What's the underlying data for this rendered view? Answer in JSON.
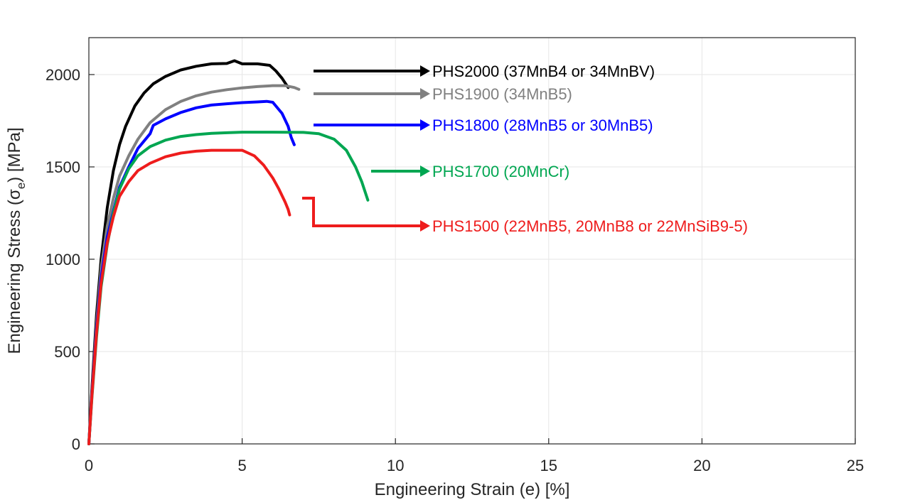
{
  "chart_data": {
    "type": "line",
    "title": "",
    "xlabel": "Engineering Strain (e) [%]",
    "ylabel_prefix": "Engineering Stress (σ",
    "ylabel_sub": "e",
    "ylabel_suffix": ") [MPa]",
    "xlim": [
      0,
      25
    ],
    "ylim": [
      0,
      2200
    ],
    "xticks": [
      0,
      5,
      10,
      15,
      20,
      25
    ],
    "yticks": [
      0,
      500,
      1000,
      1500,
      2000
    ],
    "grid": true,
    "series": [
      {
        "name": "PHS2000 (37MnB4 or 34MnBV)",
        "color": "#000000",
        "x": [
          0,
          0.1,
          0.25,
          0.4,
          0.6,
          0.8,
          1.0,
          1.2,
          1.5,
          1.8,
          2.1,
          2.5,
          3.0,
          3.5,
          4.0,
          4.5,
          4.75,
          5.0,
          5.5,
          5.9,
          6.1,
          6.3,
          6.5
        ],
        "values": [
          0,
          300,
          700,
          1000,
          1280,
          1480,
          1620,
          1720,
          1830,
          1900,
          1950,
          1990,
          2025,
          2045,
          2058,
          2060,
          2075,
          2058,
          2058,
          2050,
          2020,
          1980,
          1930
        ]
      },
      {
        "name": "PHS1900 (34MnB5)",
        "color": "#808080",
        "x": [
          0,
          0.1,
          0.25,
          0.4,
          0.6,
          0.8,
          1.0,
          1.3,
          1.6,
          2.0,
          2.5,
          3.0,
          3.5,
          4.0,
          4.5,
          5.0,
          5.5,
          6.0,
          6.4,
          6.7,
          6.85
        ],
        "values": [
          0,
          280,
          650,
          950,
          1180,
          1330,
          1450,
          1560,
          1650,
          1740,
          1810,
          1855,
          1885,
          1905,
          1918,
          1928,
          1935,
          1940,
          1940,
          1930,
          1920
        ]
      },
      {
        "name": "PHS1800 (28MnB5 or 30MnB5)",
        "color": "#0000ff",
        "x": [
          0,
          0.1,
          0.25,
          0.4,
          0.6,
          0.8,
          1.0,
          1.3,
          1.6,
          2.0,
          2.1,
          2.5,
          3.0,
          3.5,
          4.0,
          4.5,
          5.0,
          5.5,
          5.8,
          6.0,
          6.3,
          6.5,
          6.6,
          6.7
        ],
        "values": [
          0,
          270,
          620,
          900,
          1120,
          1260,
          1390,
          1500,
          1600,
          1680,
          1725,
          1760,
          1795,
          1820,
          1835,
          1842,
          1848,
          1852,
          1855,
          1850,
          1790,
          1720,
          1660,
          1620
        ]
      },
      {
        "name": "PHS1700 (20MnCr)",
        "color": "#00a651",
        "x": [
          0,
          0.1,
          0.25,
          0.4,
          0.6,
          0.8,
          1.0,
          1.3,
          1.6,
          2.0,
          2.5,
          3.0,
          3.5,
          4.0,
          4.5,
          5.0,
          6.0,
          7.0,
          7.5,
          8.0,
          8.4,
          8.7,
          8.9,
          9.1
        ],
        "values": [
          0,
          250,
          580,
          850,
          1080,
          1250,
          1380,
          1490,
          1560,
          1610,
          1645,
          1665,
          1675,
          1682,
          1685,
          1688,
          1688,
          1687,
          1680,
          1650,
          1590,
          1500,
          1420,
          1320
        ]
      },
      {
        "name": "PHS1500 (22MnB5, 20MnB8 or 22MnSiB9-5)",
        "color": "#ee1c1c",
        "x": [
          0,
          0.1,
          0.25,
          0.4,
          0.6,
          0.8,
          1.0,
          1.3,
          1.6,
          2.0,
          2.5,
          3.0,
          3.5,
          4.0,
          4.5,
          5.0,
          5.4,
          5.7,
          6.0,
          6.2,
          6.4,
          6.5,
          6.55
        ],
        "values": [
          0,
          260,
          600,
          870,
          1090,
          1230,
          1340,
          1420,
          1480,
          1520,
          1555,
          1575,
          1585,
          1590,
          1590,
          1590,
          1560,
          1510,
          1440,
          1380,
          1310,
          1270,
          1240
        ]
      }
    ]
  }
}
